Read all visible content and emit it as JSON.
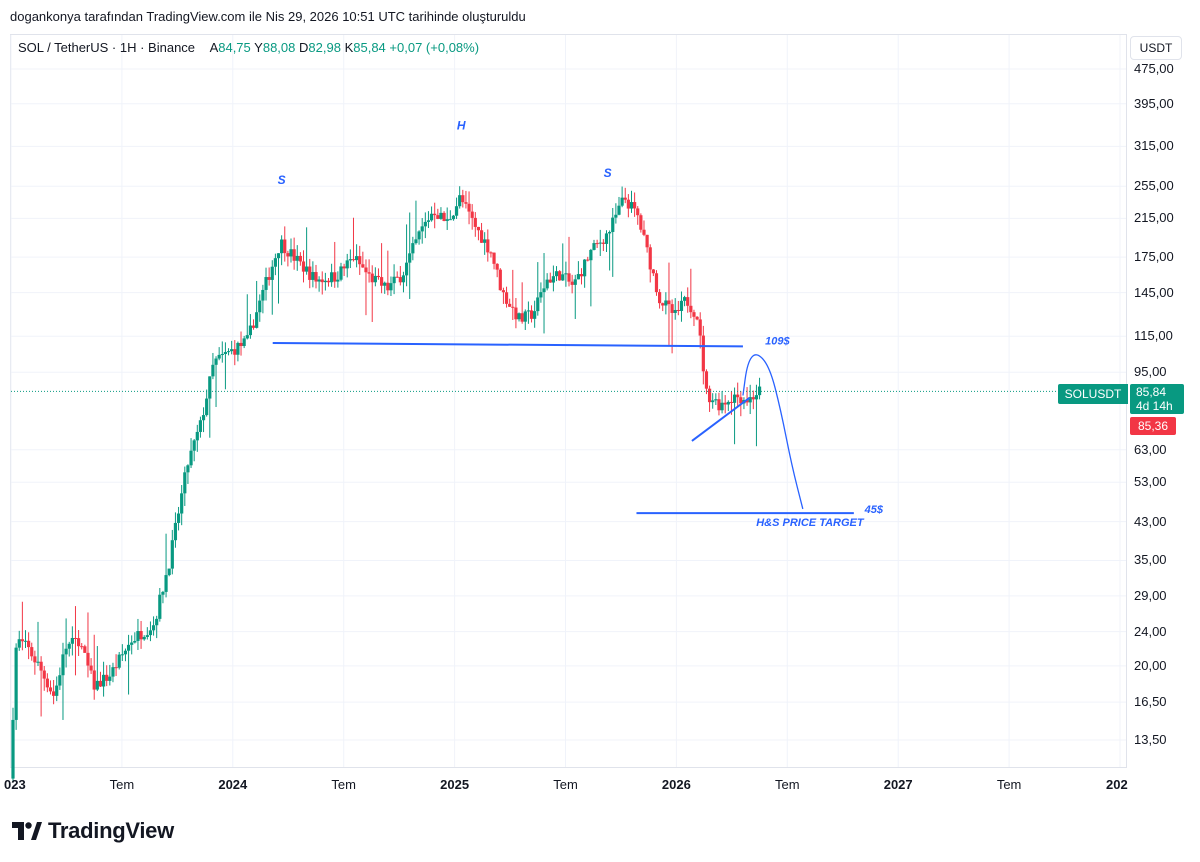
{
  "caption": "dogankonya tarafından TradingView.com ile Nis 29, 2026 10:51 UTC tarihinde oluşturuldu",
  "legend": {
    "symbol": "SOL / TetherUS · 1H · Binance",
    "open_label": "A",
    "open": "84,75",
    "high_label": "Y",
    "high": "88,08",
    "low_label": "D",
    "low": "82,98",
    "close_label": "K",
    "close": "85,84",
    "change": "+0,07 (+0,08%)"
  },
  "currency": "USDT",
  "price_tag": {
    "symbol": "SOLUSDT",
    "price": "85,84",
    "countdown": "4d 14h",
    "second_price": "85,36"
  },
  "brand": "TradingView",
  "icons": {
    "logo": "tradingview-logo-icon"
  },
  "colors": {
    "up": "#089981",
    "down": "#f23645",
    "annotation": "#2962ff",
    "pattern_text": "#2962ff"
  },
  "chart_data": {
    "type": "candlestick",
    "scale": "log",
    "y_ticks": [
      475,
      395,
      315,
      255,
      215,
      175,
      145,
      115,
      95,
      63,
      53,
      43,
      35,
      29,
      24,
      20,
      16.5,
      13.5
    ],
    "y_tick_labels": [
      "475,00",
      "395,00",
      "315,00",
      "255,00",
      "215,00",
      "175,00",
      "145,00",
      "115,00",
      "95,00",
      "63,00",
      "53,00",
      "43,00",
      "35,00",
      "29,00",
      "24,00",
      "20,00",
      "16,50",
      "13,50"
    ],
    "x_ticks": [
      {
        "label": "023",
        "t": 2023.0,
        "bold": true
      },
      {
        "label": "Tem",
        "t": 2023.5,
        "bold": false
      },
      {
        "label": "2024",
        "t": 2024.0,
        "bold": true
      },
      {
        "label": "Tem",
        "t": 2024.5,
        "bold": false
      },
      {
        "label": "2025",
        "t": 2025.0,
        "bold": true
      },
      {
        "label": "Tem",
        "t": 2025.5,
        "bold": false
      },
      {
        "label": "2026",
        "t": 2026.0,
        "bold": true
      },
      {
        "label": "Tem",
        "t": 2026.5,
        "bold": false
      },
      {
        "label": "2027",
        "t": 2027.0,
        "bold": true
      },
      {
        "label": "Tem",
        "t": 2027.5,
        "bold": false
      },
      {
        "label": "202",
        "t": 2028.0,
        "bold": true
      }
    ],
    "current_price": 85.84,
    "trend": [
      [
        2023.0,
        11
      ],
      [
        2023.03,
        23
      ],
      [
        2023.08,
        22
      ],
      [
        2023.13,
        20
      ],
      [
        2023.2,
        17
      ],
      [
        2023.25,
        22
      ],
      [
        2023.31,
        23
      ],
      [
        2023.38,
        18
      ],
      [
        2023.45,
        19
      ],
      [
        2023.55,
        23
      ],
      [
        2023.65,
        25
      ],
      [
        2023.72,
        35
      ],
      [
        2023.8,
        58
      ],
      [
        2023.86,
        72
      ],
      [
        2023.92,
        100
      ],
      [
        2023.98,
        105
      ],
      [
        2024.07,
        112
      ],
      [
        2024.15,
        150
      ],
      [
        2024.22,
        190
      ],
      [
        2024.28,
        175
      ],
      [
        2024.38,
        155
      ],
      [
        2024.47,
        158
      ],
      [
        2024.55,
        175
      ],
      [
        2024.62,
        158
      ],
      [
        2024.7,
        148
      ],
      [
        2024.77,
        160
      ],
      [
        2024.85,
        200
      ],
      [
        2024.91,
        225
      ],
      [
        2024.97,
        210
      ],
      [
        2025.03,
        240
      ],
      [
        2025.1,
        205
      ],
      [
        2025.17,
        180
      ],
      [
        2025.22,
        145
      ],
      [
        2025.3,
        125
      ],
      [
        2025.36,
        130
      ],
      [
        2025.42,
        155
      ],
      [
        2025.48,
        160
      ],
      [
        2025.54,
        150
      ],
      [
        2025.62,
        180
      ],
      [
        2025.7,
        200
      ],
      [
        2025.77,
        240
      ],
      [
        2025.83,
        218
      ],
      [
        2025.88,
        175
      ],
      [
        2025.93,
        140
      ],
      [
        2026.0,
        128
      ],
      [
        2026.05,
        140
      ],
      [
        2026.1,
        128
      ],
      [
        2026.14,
        85
      ],
      [
        2026.2,
        80
      ],
      [
        2026.27,
        84
      ],
      [
        2026.33,
        82
      ],
      [
        2026.38,
        86
      ]
    ],
    "annotations": [
      {
        "text": "S",
        "t": 2024.22,
        "price": 258
      },
      {
        "text": "H",
        "t": 2025.03,
        "price": 345
      },
      {
        "text": "S",
        "t": 2025.69,
        "price": 268
      },
      {
        "text": "109$",
        "t": 2026.4,
        "price": 110
      },
      {
        "text": "45$",
        "t": 2026.89,
        "price": 45
      },
      {
        "text": "H&S PRICE TARGET",
        "t": 2026.36,
        "price": 42
      }
    ],
    "neckline": {
      "t1": 2024.18,
      "p1": 111,
      "t2": 2026.3,
      "p2": 109
    },
    "target_line": {
      "t1": 2025.82,
      "p1": 45,
      "t2": 2026.8,
      "p2": 45
    },
    "wedge_lower": {
      "t1": 2026.07,
      "p1": 66,
      "t2": 2026.33,
      "p2": 83
    },
    "projection": [
      [
        2026.3,
        84
      ],
      [
        2026.32,
        100
      ],
      [
        2026.36,
        106
      ],
      [
        2026.42,
        98
      ],
      [
        2026.47,
        78
      ],
      [
        2026.52,
        58
      ],
      [
        2026.57,
        46
      ]
    ]
  }
}
